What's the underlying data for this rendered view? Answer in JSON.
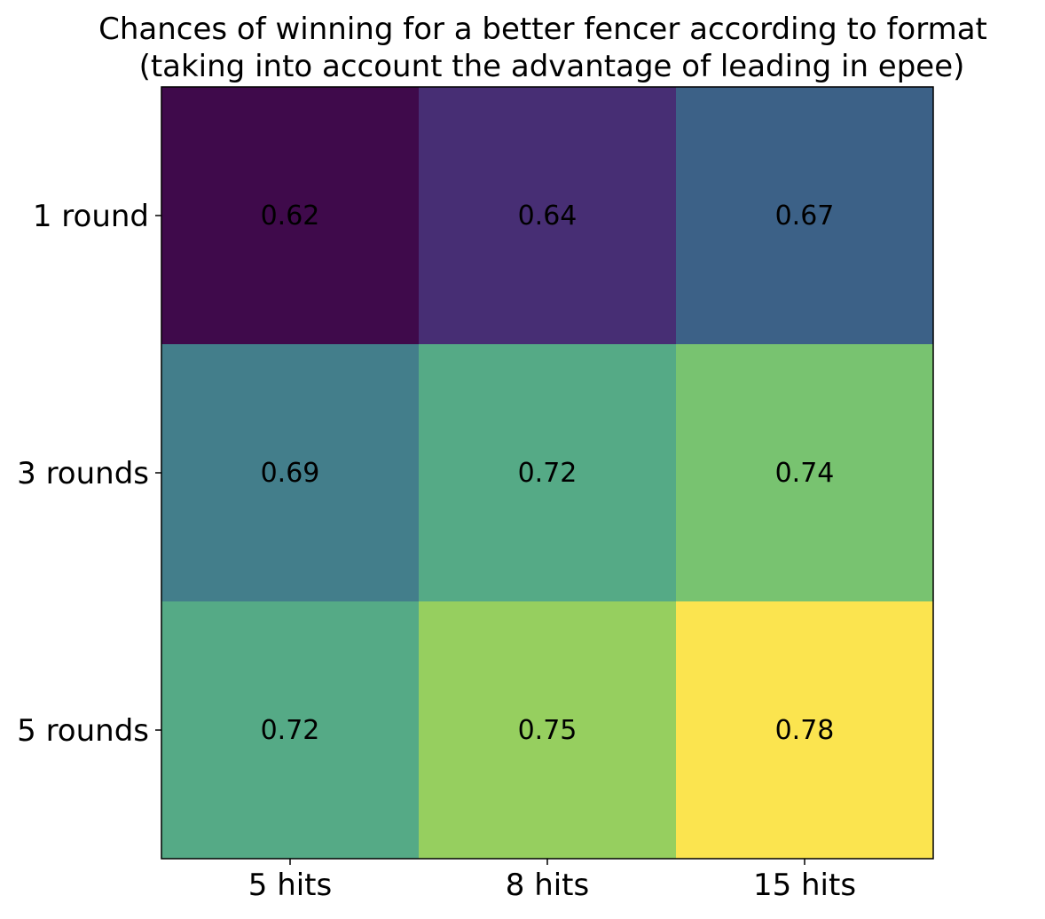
{
  "chart_data": {
    "type": "heatmap",
    "title": [
      "Chances of winning for a better fencer according to format",
      "(taking into account the advantage of leading in epee)"
    ],
    "x_categories": [
      "5 hits",
      "8 hits",
      "15 hits"
    ],
    "y_categories": [
      "1 round",
      "3 rounds",
      "5 rounds"
    ],
    "values": [
      [
        0.62,
        0.64,
        0.67
      ],
      [
        0.69,
        0.72,
        0.74
      ],
      [
        0.72,
        0.75,
        0.78
      ]
    ],
    "value_labels": [
      [
        "0.62",
        "0.64",
        "0.67"
      ],
      [
        "0.69",
        "0.72",
        "0.74"
      ],
      [
        "0.72",
        "0.75",
        "0.78"
      ]
    ],
    "colormap": "viridis",
    "colors": [
      [
        "#3f0a4b",
        "#472e74",
        "#3c6187"
      ],
      [
        "#437e8b",
        "#55aa86",
        "#78c370"
      ],
      [
        "#55aa86",
        "#96cf5f",
        "#fbe44f"
      ]
    ],
    "grid": false
  }
}
